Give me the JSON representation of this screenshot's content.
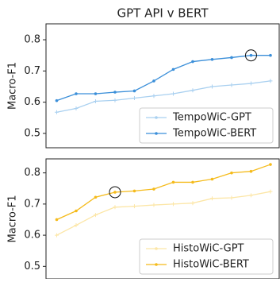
{
  "chart_data": [
    {
      "type": "line",
      "title": "GPT API v BERT",
      "ylabel": "Macro-F1",
      "x": [
        0,
        1,
        2,
        3,
        4,
        5,
        6,
        7,
        8,
        9,
        10,
        11
      ],
      "xlim": [
        -0.55,
        11.45
      ],
      "ylim": [
        0.454,
        0.851
      ],
      "yticks": [
        0.5,
        0.6,
        0.7,
        0.8
      ],
      "legend": "lower right",
      "highlight_series": 1,
      "highlight_index": 10,
      "series": [
        {
          "name": "TempoWiC-GPT",
          "color": "#a9d0f0",
          "values": [
            0.568,
            0.58,
            0.603,
            0.606,
            0.613,
            0.62,
            0.627,
            0.638,
            0.65,
            0.655,
            0.66,
            0.668
          ]
        },
        {
          "name": "TempoWiC-BERT",
          "color": "#3b8fd9",
          "values": [
            0.605,
            0.627,
            0.627,
            0.632,
            0.636,
            0.668,
            0.705,
            0.73,
            0.737,
            0.743,
            0.75,
            0.75
          ]
        }
      ]
    },
    {
      "type": "line",
      "ylabel": "Macro-F1",
      "x": [
        0,
        1,
        2,
        3,
        4,
        5,
        6,
        7,
        8,
        9,
        10,
        11
      ],
      "xlim": [
        -0.55,
        11.45
      ],
      "ylim": [
        0.46,
        0.845
      ],
      "yticks": [
        0.5,
        0.6,
        0.7,
        0.8
      ],
      "legend": "lower right",
      "highlight_series": 1,
      "highlight_index": 3,
      "series": [
        {
          "name": "HistoWiC-GPT",
          "color": "#fce6a6",
          "values": [
            0.6,
            0.632,
            0.665,
            0.69,
            0.693,
            0.697,
            0.7,
            0.703,
            0.718,
            0.72,
            0.728,
            0.74
          ]
        },
        {
          "name": "HistoWiC-BERT",
          "color": "#f5bb1b",
          "values": [
            0.65,
            0.678,
            0.722,
            0.738,
            0.742,
            0.748,
            0.77,
            0.77,
            0.78,
            0.8,
            0.805,
            0.827
          ]
        }
      ]
    }
  ]
}
